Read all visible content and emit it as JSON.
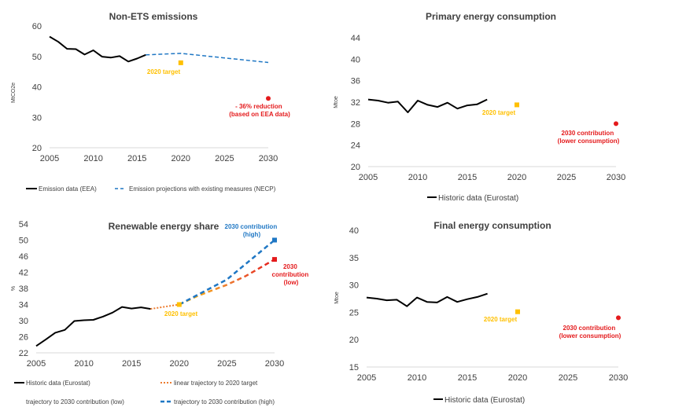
{
  "colors": {
    "black": "#000000",
    "blue": "#1f77c4",
    "orange": "#ffc000",
    "red": "#e41a1c",
    "axis": "#d9d9d9"
  },
  "chart_data": [
    {
      "id": "nonets",
      "type": "line",
      "title": "Non-ETS emissions",
      "ylabel": "MtCO2e",
      "xlim": [
        2005,
        2030
      ],
      "ylim": [
        20,
        60
      ],
      "xticks": [
        "2005",
        "2010",
        "2015",
        "2020",
        "2025",
        "2030"
      ],
      "yticks": [
        "20",
        "30",
        "40",
        "50",
        "60"
      ],
      "series": [
        {
          "name": "Emission data (EEA)",
          "x": [
            2005,
            2006,
            2007,
            2008,
            2009,
            2010,
            2011,
            2012,
            2013,
            2014,
            2015,
            2016
          ],
          "y": [
            56.5,
            54.8,
            52.5,
            52.4,
            50.6,
            52.0,
            49.9,
            49.6,
            50.1,
            48.3,
            49.3,
            50.5
          ]
        },
        {
          "name": "Emission projections with existing measures (NECP)",
          "x": [
            2016,
            2020,
            2025,
            2030
          ],
          "y": [
            50.5,
            51.0,
            49.5,
            48.0
          ]
        }
      ],
      "points": [
        {
          "label": "2020 target",
          "x": 2020,
          "y": 47.9
        },
        {
          "label": "- 36% reduction\n(based on EEA data)",
          "x": 2030,
          "y": 36.2
        }
      ]
    },
    {
      "id": "primary",
      "type": "line",
      "title": "Primary energy consumption",
      "ylabel": "Mtoe",
      "xlim": [
        2005,
        2030
      ],
      "ylim": [
        20,
        44
      ],
      "xticks": [
        "2005",
        "2010",
        "2015",
        "2020",
        "2025",
        "2030"
      ],
      "yticks": [
        "20",
        "24",
        "28",
        "32",
        "36",
        "40",
        "44"
      ],
      "series": [
        {
          "name": "Historic data (Eurostat)",
          "x": [
            2005,
            2006,
            2007,
            2008,
            2009,
            2010,
            2011,
            2012,
            2013,
            2014,
            2015,
            2016,
            2017
          ],
          "y": [
            32.5,
            32.3,
            31.9,
            32.1,
            30.1,
            32.3,
            31.5,
            31.1,
            31.9,
            30.8,
            31.4,
            31.6,
            32.5
          ]
        }
      ],
      "points": [
        {
          "label": "2020 target",
          "x": 2020,
          "y": 31.5
        },
        {
          "label": "2030 contribution\n(lower consumption)",
          "x": 2030,
          "y": 28.0
        }
      ]
    },
    {
      "id": "res",
      "type": "line",
      "title": "Renewable energy share",
      "ylabel": "%",
      "xlim": [
        2005,
        2030
      ],
      "ylim": [
        22,
        54
      ],
      "xticks": [
        "2005",
        "2010",
        "2015",
        "2020",
        "2025",
        "2030"
      ],
      "yticks": [
        "22",
        "26",
        "30",
        "34",
        "38",
        "42",
        "46",
        "50",
        "54"
      ],
      "series": [
        {
          "name": "Historic data (Eurostat)",
          "x": [
            2005,
            2006,
            2007,
            2008,
            2009,
            2010,
            2011,
            2012,
            2013,
            2014,
            2015,
            2016,
            2017
          ],
          "y": [
            23.7,
            25.3,
            27.0,
            27.7,
            29.9,
            30.1,
            30.2,
            31.0,
            32.0,
            33.4,
            33.0,
            33.3,
            32.9
          ]
        },
        {
          "name": "linear trajectory to 2020 target",
          "x": [
            2017,
            2020
          ],
          "y": [
            32.9,
            34.0
          ]
        },
        {
          "name": "trajectory to 2030 contribution (low)",
          "x": [
            2020,
            2022,
            2025,
            2027,
            2030
          ],
          "y": [
            34.0,
            36.2,
            38.9,
            41.1,
            45.2
          ]
        },
        {
          "name": "trajectory to 2030 contribution (high)",
          "x": [
            2020,
            2025,
            2030
          ],
          "y": [
            34.0,
            40.2,
            50.0
          ]
        }
      ],
      "points": [
        {
          "label": "2020 target",
          "x": 2020,
          "y": 34.0
        },
        {
          "label": "2030 contribution\n(high)",
          "x": 2030,
          "y": 50.0
        },
        {
          "label": "2030\ncontribution\n(low)",
          "x": 2030,
          "y": 45.2
        }
      ]
    },
    {
      "id": "final",
      "type": "line",
      "title": "Final energy consumption",
      "ylabel": "Mtoe",
      "xlim": [
        2005,
        2030
      ],
      "ylim": [
        15,
        40
      ],
      "xticks": [
        "2005",
        "2010",
        "2015",
        "2020",
        "2025",
        "2030"
      ],
      "yticks": [
        "15",
        "20",
        "25",
        "30",
        "35",
        "40"
      ],
      "series": [
        {
          "name": "Historic data (Eurostat)",
          "x": [
            2005,
            2006,
            2007,
            2008,
            2009,
            2010,
            2011,
            2012,
            2013,
            2014,
            2015,
            2016,
            2017
          ],
          "y": [
            27.7,
            27.5,
            27.2,
            27.3,
            26.1,
            27.7,
            26.9,
            26.8,
            27.8,
            26.9,
            27.4,
            27.8,
            28.4
          ]
        }
      ],
      "points": [
        {
          "label": "2020 target",
          "x": 2020,
          "y": 25.1
        },
        {
          "label": "2030 contribution\n(lower consumption)",
          "x": 2030,
          "y": 24.0
        }
      ]
    }
  ]
}
